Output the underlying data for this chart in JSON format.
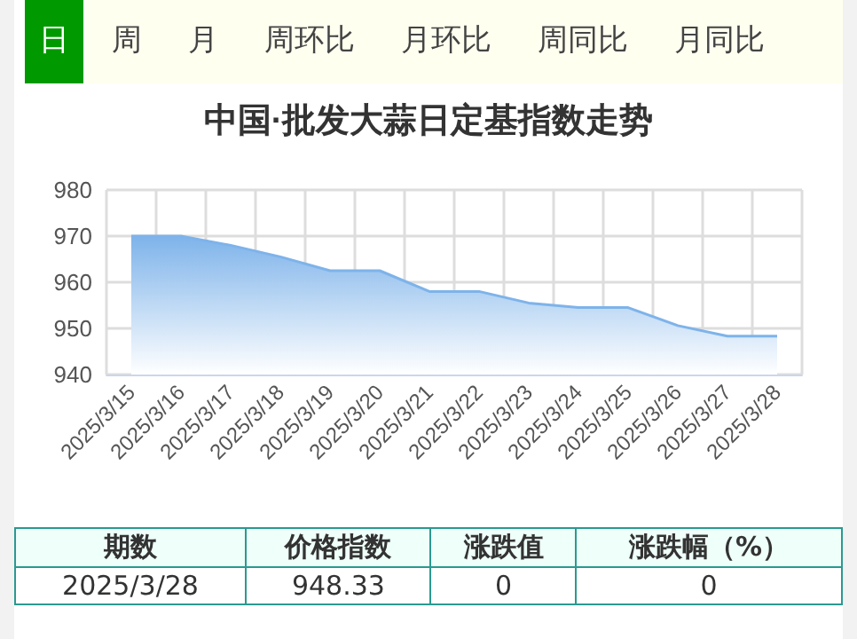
{
  "chart_data": {
    "type": "area",
    "title": "中国·批发大蒜日定基指数走势",
    "categories": [
      "2025/3/15",
      "2025/3/16",
      "2025/3/17",
      "2025/3/18",
      "2025/3/19",
      "2025/3/20",
      "2025/3/21",
      "2025/3/22",
      "2025/3/23",
      "2025/3/24",
      "2025/3/25",
      "2025/3/26",
      "2025/3/27",
      "2025/3/28"
    ],
    "series": [
      {
        "color": "#7eb3ea",
        "values": [
          970,
          970,
          968,
          965.5,
          962.5,
          962.5,
          958,
          958,
          955.5,
          954.5,
          954.5,
          950.6,
          948.3,
          948.33
        ]
      }
    ],
    "ylim": [
      940,
      980
    ],
    "yticks": [
      940,
      950,
      960,
      970,
      980
    ],
    "grid": true,
    "marker": "none",
    "annotations": [
      "日",
      "周",
      "月",
      "周环比",
      "月环比",
      "周同比",
      "月同比",
      "期数",
      "价格指数",
      "涨跌值",
      "涨跌幅（%）",
      "2025/3/28",
      "948.33",
      "0",
      "0"
    ]
  }
}
